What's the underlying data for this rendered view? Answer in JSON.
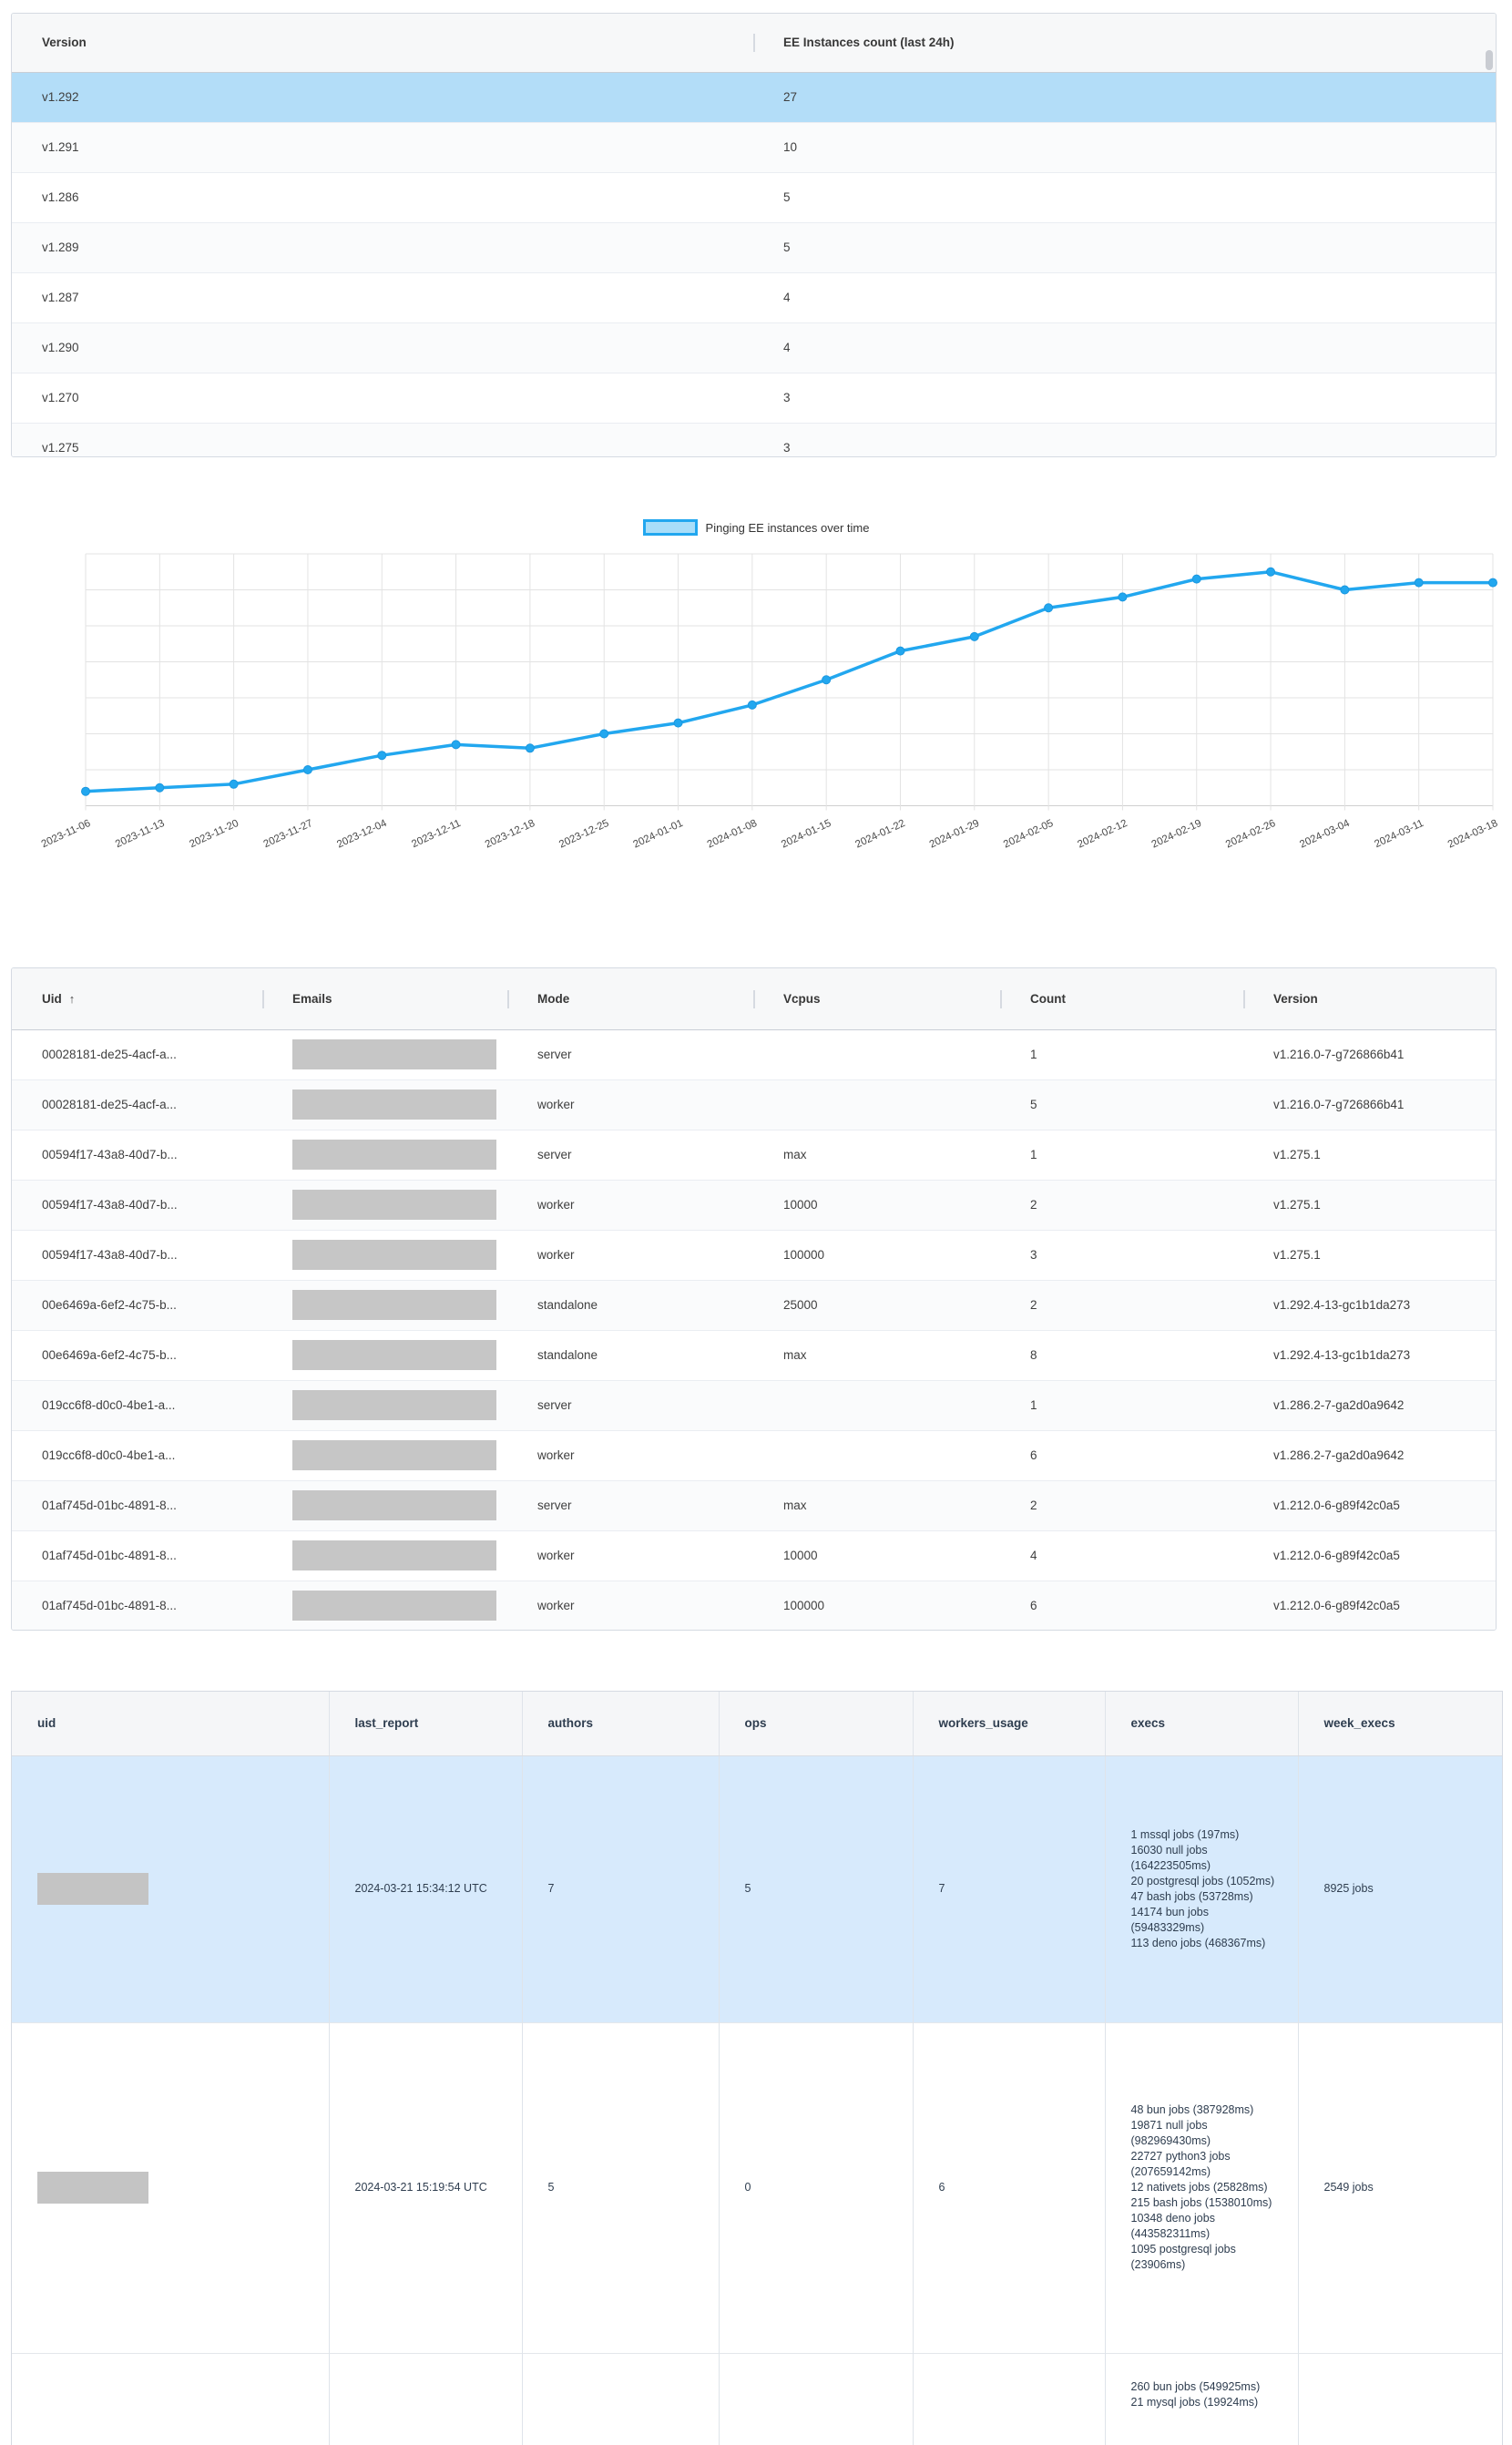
{
  "colors": {
    "selected_row": "#b3ddf8",
    "usage_selected_row": "#d7eafc",
    "chart_line": "#22a7ef",
    "legend_fill": "#a9def9",
    "grid_line": "#e3e3e3",
    "redacted_box": "#c6c6c6"
  },
  "version_table": {
    "columns": [
      "Version",
      "EE Instances count (last 24h)"
    ],
    "selected_row": 0,
    "rows": [
      [
        "v1.292",
        "27"
      ],
      [
        "v1.291",
        "10"
      ],
      [
        "v1.286",
        "5"
      ],
      [
        "v1.289",
        "5"
      ],
      [
        "v1.287",
        "4"
      ],
      [
        "v1.290",
        "4"
      ],
      [
        "v1.270",
        "3"
      ],
      [
        "v1.275",
        "3"
      ]
    ]
  },
  "chart_data": {
    "type": "line",
    "title": "",
    "legend": "Pinging EE instances over time",
    "legend_position": "top",
    "grid": true,
    "x": [
      "2023-11-06",
      "2023-11-13",
      "2023-11-20",
      "2023-11-27",
      "2023-12-04",
      "2023-12-11",
      "2023-12-18",
      "2023-12-25",
      "2024-01-01",
      "2024-01-08",
      "2024-01-15",
      "2024-01-22",
      "2024-01-29",
      "2024-02-05",
      "2024-02-12",
      "2024-02-19",
      "2024-02-26",
      "2024-03-04",
      "2024-03-11",
      "2024-03-18"
    ],
    "values": [
      4,
      5,
      6,
      10,
      14,
      17,
      16,
      20,
      23,
      28,
      35,
      43,
      47,
      55,
      58,
      63,
      65,
      60,
      62,
      62
    ],
    "xlabel": "",
    "ylabel": "",
    "y_axis_labels_visible": false,
    "ylim": [
      0,
      70
    ]
  },
  "instances_table": {
    "columns": [
      "Uid",
      "Emails",
      "Mode",
      "Vcpus",
      "Count",
      "Version"
    ],
    "sort_icon": "↑",
    "rows": [
      {
        "uid": "00028181-de25-4acf-a...",
        "mode": "server",
        "vcpus": "",
        "count": "1",
        "version": "v1.216.0-7-g726866b41"
      },
      {
        "uid": "00028181-de25-4acf-a...",
        "mode": "worker",
        "vcpus": "",
        "count": "5",
        "version": "v1.216.0-7-g726866b41"
      },
      {
        "uid": "00594f17-43a8-40d7-b...",
        "mode": "server",
        "vcpus": "max",
        "count": "1",
        "version": "v1.275.1"
      },
      {
        "uid": "00594f17-43a8-40d7-b...",
        "mode": "worker",
        "vcpus": "10000",
        "count": "2",
        "version": "v1.275.1"
      },
      {
        "uid": "00594f17-43a8-40d7-b...",
        "mode": "worker",
        "vcpus": "100000",
        "count": "3",
        "version": "v1.275.1"
      },
      {
        "uid": "00e6469a-6ef2-4c75-b...",
        "mode": "standalone",
        "vcpus": "25000",
        "count": "2",
        "version": "v1.292.4-13-gc1b1da273"
      },
      {
        "uid": "00e6469a-6ef2-4c75-b...",
        "mode": "standalone",
        "vcpus": "max",
        "count": "8",
        "version": "v1.292.4-13-gc1b1da273"
      },
      {
        "uid": "019cc6f8-d0c0-4be1-a...",
        "mode": "server",
        "vcpus": "",
        "count": "1",
        "version": "v1.286.2-7-ga2d0a9642"
      },
      {
        "uid": "019cc6f8-d0c0-4be1-a...",
        "mode": "worker",
        "vcpus": "",
        "count": "6",
        "version": "v1.286.2-7-ga2d0a9642"
      },
      {
        "uid": "01af745d-01bc-4891-8...",
        "mode": "server",
        "vcpus": "max",
        "count": "2",
        "version": "v1.212.0-6-g89f42c0a5"
      },
      {
        "uid": "01af745d-01bc-4891-8...",
        "mode": "worker",
        "vcpus": "10000",
        "count": "4",
        "version": "v1.212.0-6-g89f42c0a5"
      },
      {
        "uid": "01af745d-01bc-4891-8...",
        "mode": "worker",
        "vcpus": "100000",
        "count": "6",
        "version": "v1.212.0-6-g89f42c0a5"
      }
    ]
  },
  "usage_table": {
    "columns": [
      "uid",
      "last_report",
      "authors",
      "ops",
      "workers_usage",
      "execs",
      "week_execs"
    ],
    "selected_row": 0,
    "rows": [
      {
        "last_report": "2024-03-21 15:34:12 UTC",
        "authors": "7",
        "ops": "5",
        "workers_usage": "7",
        "execs": [
          "1 mssql jobs (197ms)",
          "16030 null jobs (164223505ms)",
          "20 postgresql jobs (1052ms)",
          "47 bash jobs (53728ms)",
          "14174 bun jobs (59483329ms)",
          "113 deno jobs (468367ms)"
        ],
        "week_execs": "8925 jobs"
      },
      {
        "last_report": "2024-03-21 15:19:54 UTC",
        "authors": "5",
        "ops": "0",
        "workers_usage": "6",
        "execs": [
          "48 bun jobs (387928ms)",
          "19871 null jobs (982969430ms)",
          "22727 python3 jobs (207659142ms)",
          "12 nativets jobs (25828ms)",
          "215 bash jobs (1538010ms)",
          "10348 deno jobs (443582311ms)",
          "1095 postgresql jobs (23906ms)"
        ],
        "week_execs": "2549 jobs"
      },
      {
        "last_report": "",
        "authors": "",
        "ops": "",
        "workers_usage": "",
        "execs": [
          "260 bun jobs (549925ms)",
          "21 mysql jobs (19924ms)"
        ],
        "week_execs": ""
      }
    ]
  }
}
